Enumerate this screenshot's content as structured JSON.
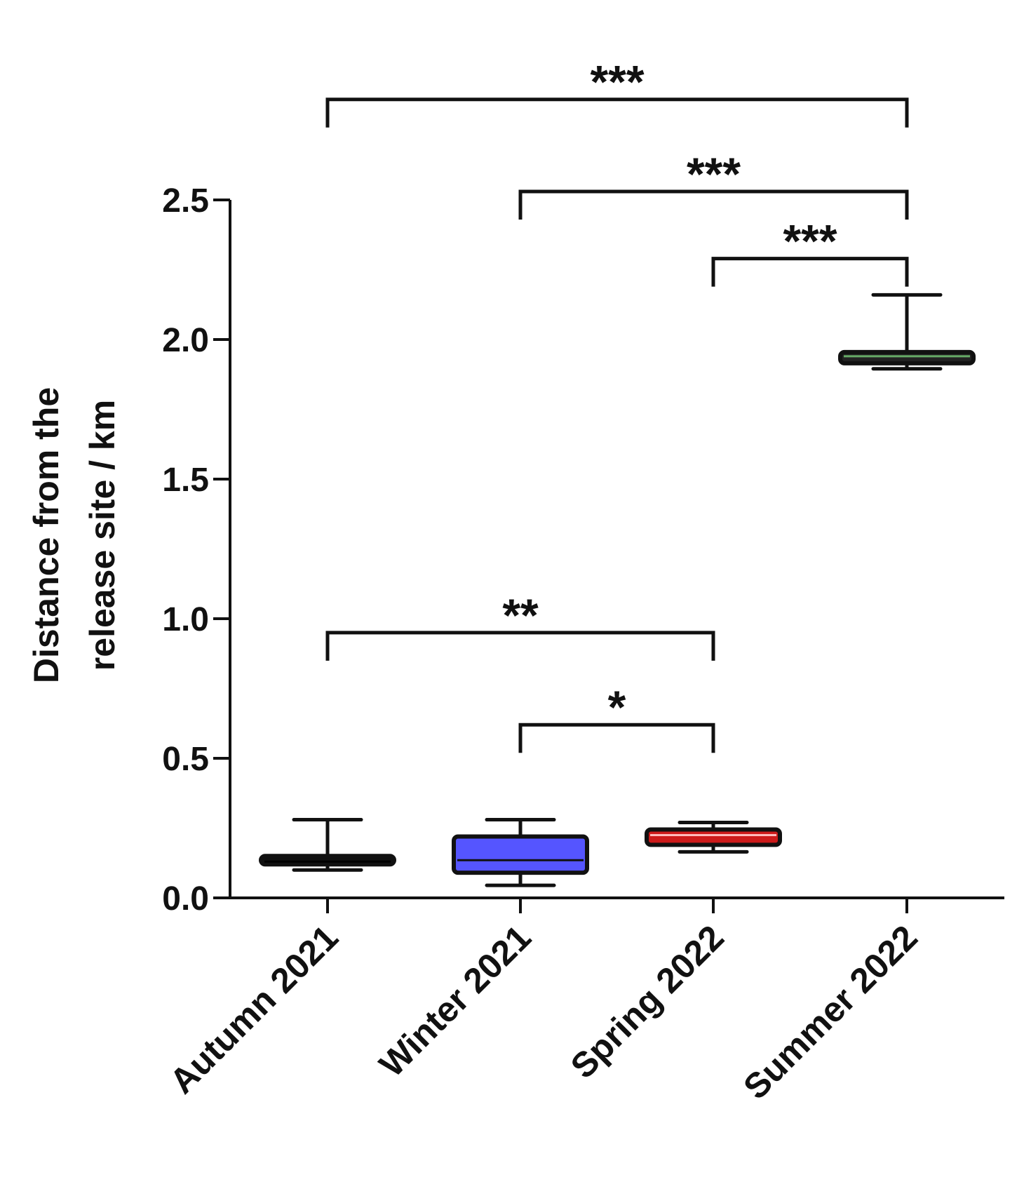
{
  "chart_data": {
    "type": "box",
    "title": "",
    "xlabel": "",
    "ylabel": [
      "Distance from the",
      "release site / km"
    ],
    "ylim": [
      0,
      2.5
    ],
    "yticks": [
      0.0,
      0.5,
      1.0,
      1.5,
      2.0,
      2.5
    ],
    "ytick_labels": [
      "0.0",
      "0.5",
      "1.0",
      "1.5",
      "2.0",
      "2.5"
    ],
    "categories": [
      "Autumn 2021",
      "Winter 2021",
      "Spring 2022",
      "Summer 2022"
    ],
    "boxes": [
      {
        "category": "Autumn 2021",
        "min": 0.1,
        "q1": 0.12,
        "median": 0.13,
        "q3": 0.15,
        "max": 0.28,
        "fill": "#111111",
        "median_color": "#000000"
      },
      {
        "category": "Winter 2021",
        "min": 0.045,
        "q1": 0.09,
        "median": 0.135,
        "q3": 0.22,
        "max": 0.28,
        "fill": "#5555ff",
        "median_color": "#111111"
      },
      {
        "category": "Spring 2022",
        "min": 0.165,
        "q1": 0.19,
        "median": 0.225,
        "q3": 0.245,
        "max": 0.27,
        "fill": "#cc1a1a",
        "median_color": "#ffbbbb"
      },
      {
        "category": "Summer 2022",
        "min": 1.895,
        "q1": 1.915,
        "median": 1.94,
        "q3": 1.955,
        "max": 2.16,
        "fill": "#222222",
        "median_color": "#66aa66"
      }
    ],
    "significance": [
      {
        "from": "Autumn 2021",
        "to": "Summer 2022",
        "label": "***",
        "level": 2.86
      },
      {
        "from": "Winter 2021",
        "to": "Summer 2022",
        "label": "***",
        "level": 2.53
      },
      {
        "from": "Spring 2022",
        "to": "Summer 2022",
        "label": "***",
        "level": 2.29
      },
      {
        "from": "Autumn 2021",
        "to": "Spring 2022",
        "label": "**",
        "level": 0.95
      },
      {
        "from": "Winter 2021",
        "to": "Spring 2022",
        "label": "*",
        "level": 0.62
      }
    ]
  }
}
